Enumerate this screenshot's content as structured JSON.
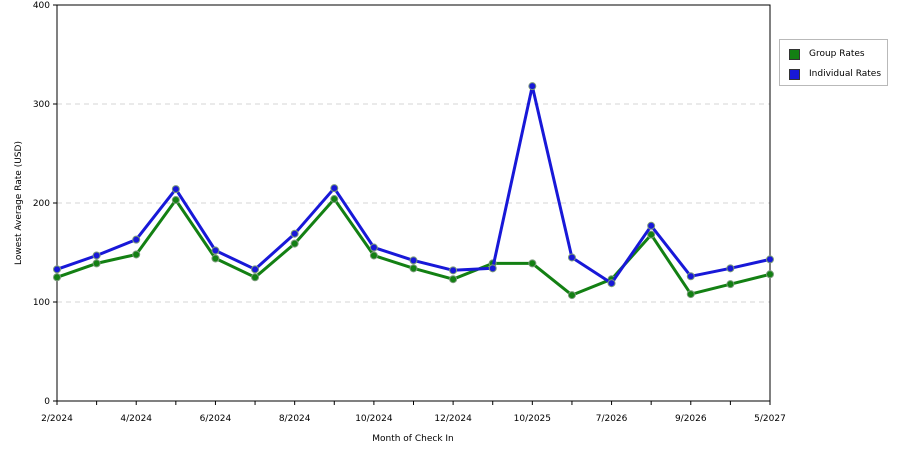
{
  "chart_data": {
    "type": "line",
    "xlabel": "Month of Check In",
    "ylabel": "Lowest Average Rate (USD)",
    "ylim": [
      0,
      400
    ],
    "yticks": [
      "0",
      "100",
      "200",
      "300",
      "400"
    ],
    "x_tick_labels": [
      "2/2024",
      "4/2024",
      "6/2024",
      "8/2024",
      "10/2024",
      "12/2024",
      "10/2025",
      "7/2026",
      "9/2026",
      "5/2027"
    ],
    "grid": "horizontal dashed",
    "legend_position": "right",
    "series": [
      {
        "name": "Group Rates",
        "color": "#138013",
        "values": [
          125,
          139,
          148,
          203,
          144,
          125,
          159,
          204,
          147,
          134,
          123,
          139,
          139,
          107,
          123,
          168,
          108,
          118,
          128
        ]
      },
      {
        "name": "Individual Rates",
        "color": "#1818d8",
        "values": [
          133,
          147,
          163,
          214,
          152,
          133,
          169,
          215,
          155,
          142,
          132,
          134,
          318,
          145,
          119,
          177,
          126,
          134,
          143
        ]
      }
    ]
  }
}
